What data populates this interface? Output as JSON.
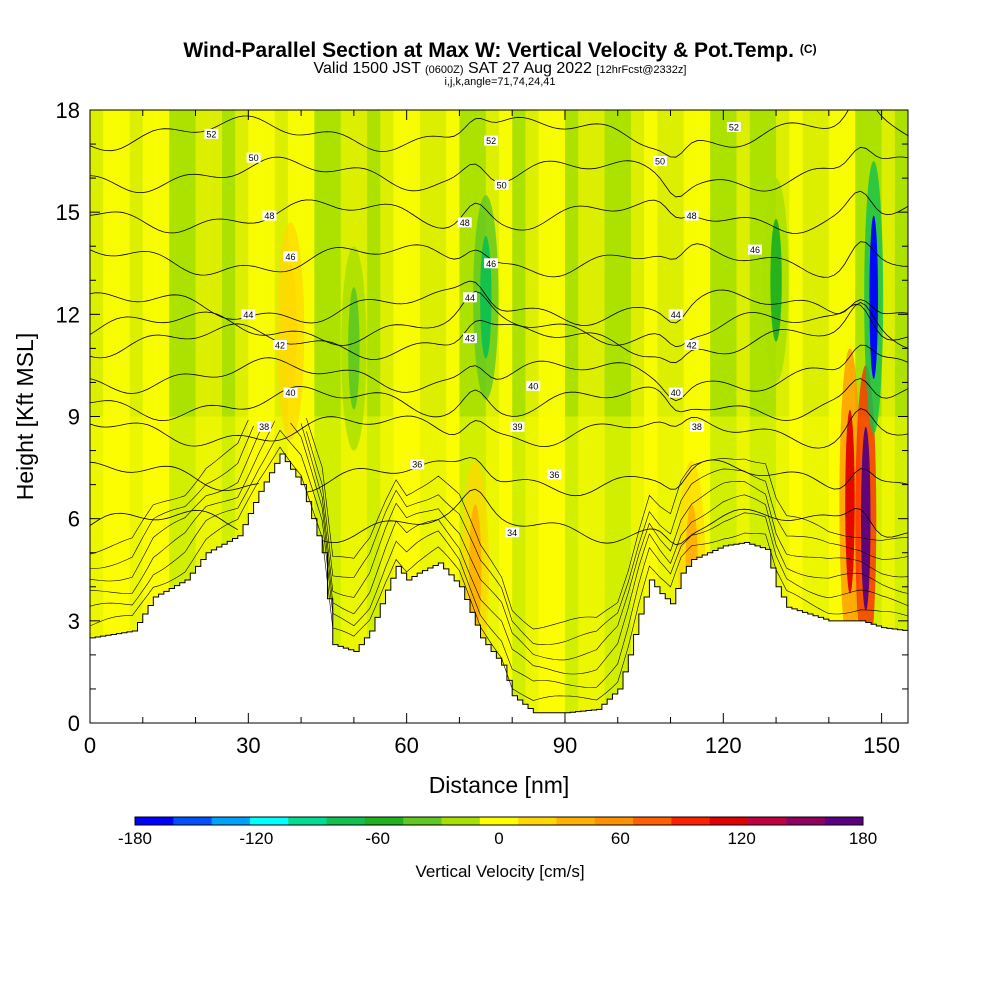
{
  "header": {
    "title": "Wind-Parallel Section at Max W: Vertical Velocity & Pot.Temp.",
    "title_mark": "(C)",
    "subtitle_a": "Valid 1500 JST",
    "subtitle_b": "(0600Z)",
    "subtitle_c": "SAT 27 Aug 2022",
    "subtitle_d": "[12hrFcst@2332z]",
    "grid_info": "i,j,k,angle=71,74,24,41"
  },
  "chart_data": {
    "type": "heatmap",
    "xlabel": "Distance [nm]",
    "ylabel": "Height [Kft MSL]",
    "xlim": [
      0,
      155
    ],
    "ylim": [
      0,
      18
    ],
    "x_ticks": [
      0,
      30,
      60,
      90,
      120,
      150
    ],
    "y_ticks": [
      0,
      3,
      6,
      9,
      12,
      15,
      18
    ],
    "colorbar": {
      "label": "Vertical Velocity [cm/s]",
      "range": [
        -180,
        180
      ],
      "tick_values": [
        -180,
        -120,
        -60,
        0,
        60,
        120,
        180
      ],
      "colors": [
        "#0000ff",
        "#0050ff",
        "#00a0ff",
        "#00ffff",
        "#00dd90",
        "#10c050",
        "#20b020",
        "#60c820",
        "#a8e000",
        "#ffff00",
        "#ffd800",
        "#ffb000",
        "#ff9000",
        "#ff6000",
        "#ff2000",
        "#e00000",
        "#c00040",
        "#900060",
        "#5a0080"
      ]
    },
    "terrain_top": [
      [
        0,
        2.5
      ],
      [
        8,
        2.7
      ],
      [
        12,
        3.7
      ],
      [
        18,
        4.2
      ],
      [
        22,
        5.0
      ],
      [
        28,
        5.5
      ],
      [
        32,
        6.8
      ],
      [
        36,
        7.9
      ],
      [
        40,
        7.0
      ],
      [
        44,
        5.0
      ],
      [
        46,
        2.3
      ],
      [
        50,
        2.1
      ],
      [
        53,
        2.7
      ],
      [
        56,
        3.9
      ],
      [
        58,
        4.6
      ],
      [
        60,
        4.2
      ],
      [
        62,
        4.4
      ],
      [
        66,
        4.7
      ],
      [
        70,
        4.0
      ],
      [
        74,
        2.5
      ],
      [
        78,
        1.7
      ],
      [
        80,
        0.8
      ],
      [
        84,
        0.3
      ],
      [
        90,
        0.3
      ],
      [
        96,
        0.4
      ],
      [
        100,
        1.0
      ],
      [
        102,
        2.0
      ],
      [
        104,
        3.2
      ],
      [
        106,
        4.2
      ],
      [
        108,
        3.8
      ],
      [
        110,
        3.5
      ],
      [
        112,
        4.4
      ],
      [
        114,
        4.8
      ],
      [
        117,
        5.0
      ],
      [
        120,
        5.2
      ],
      [
        124,
        5.3
      ],
      [
        128,
        5.1
      ],
      [
        130,
        4.0
      ],
      [
        132,
        3.4
      ],
      [
        136,
        3.2
      ],
      [
        140,
        3.0
      ],
      [
        146,
        3.0
      ],
      [
        150,
        2.8
      ],
      [
        155,
        2.7
      ]
    ],
    "updraft_cores": [
      {
        "x": 38,
        "y": 11.5,
        "value": 20
      },
      {
        "x": 73,
        "y": 4.5,
        "value": 40
      },
      {
        "x": 114,
        "y": 4.5,
        "value": 40
      },
      {
        "x": 144,
        "y": 6.5,
        "value": 120
      },
      {
        "x": 147,
        "y": 6.0,
        "value": 180
      }
    ],
    "downdraft_cores": [
      {
        "x": 50,
        "y": 11.0,
        "value": -40
      },
      {
        "x": 75,
        "y": 12.5,
        "value": -80
      },
      {
        "x": 130,
        "y": 13.0,
        "value": -60
      },
      {
        "x": 148.5,
        "y": 12.5,
        "value": -180
      }
    ],
    "theta_contours": [
      {
        "value": "34",
        "height": 5.8
      },
      {
        "value": "36",
        "height": 7.2
      },
      {
        "value": "38",
        "height": 8.6
      },
      {
        "value": "39",
        "height": 9.4
      },
      {
        "value": "40",
        "height": 10.2
      },
      {
        "value": "42",
        "height": 11.2
      },
      {
        "value": "43",
        "height": 11.6
      },
      {
        "value": "44",
        "height": 12.2
      },
      {
        "value": "46",
        "height": 13.6
      },
      {
        "value": "48",
        "height": 14.9
      },
      {
        "value": "50",
        "height": 16.1
      },
      {
        "value": "52",
        "height": 17.3
      }
    ],
    "theta_label_spots": [
      {
        "value": "52",
        "x": 23,
        "y": 17.3
      },
      {
        "value": "50",
        "x": 31,
        "y": 16.6
      },
      {
        "value": "48",
        "x": 34,
        "y": 14.9
      },
      {
        "value": "46",
        "x": 38,
        "y": 13.7
      },
      {
        "value": "44",
        "x": 30,
        "y": 12.0
      },
      {
        "value": "42",
        "x": 36,
        "y": 11.1
      },
      {
        "value": "40",
        "x": 38,
        "y": 9.7
      },
      {
        "value": "38",
        "x": 33,
        "y": 8.7
      },
      {
        "value": "36",
        "x": 62,
        "y": 7.6
      },
      {
        "value": "52",
        "x": 76,
        "y": 17.1
      },
      {
        "value": "50",
        "x": 78,
        "y": 15.8
      },
      {
        "value": "48",
        "x": 71,
        "y": 14.7
      },
      {
        "value": "46",
        "x": 76,
        "y": 13.5
      },
      {
        "value": "44",
        "x": 72,
        "y": 12.5
      },
      {
        "value": "43",
        "x": 72,
        "y": 11.3
      },
      {
        "value": "40",
        "x": 84,
        "y": 9.9
      },
      {
        "value": "39",
        "x": 81,
        "y": 8.7
      },
      {
        "value": "36",
        "x": 88,
        "y": 7.3
      },
      {
        "value": "34",
        "x": 80,
        "y": 5.6
      },
      {
        "value": "50",
        "x": 108,
        "y": 16.5
      },
      {
        "value": "48",
        "x": 114,
        "y": 14.9
      },
      {
        "value": "44",
        "x": 111,
        "y": 12.0
      },
      {
        "value": "42",
        "x": 114,
        "y": 11.1
      },
      {
        "value": "40",
        "x": 111,
        "y": 9.7
      },
      {
        "value": "38",
        "x": 115,
        "y": 8.7
      },
      {
        "value": "52",
        "x": 122,
        "y": 17.5
      },
      {
        "value": "46",
        "x": 126,
        "y": 13.9
      }
    ]
  }
}
